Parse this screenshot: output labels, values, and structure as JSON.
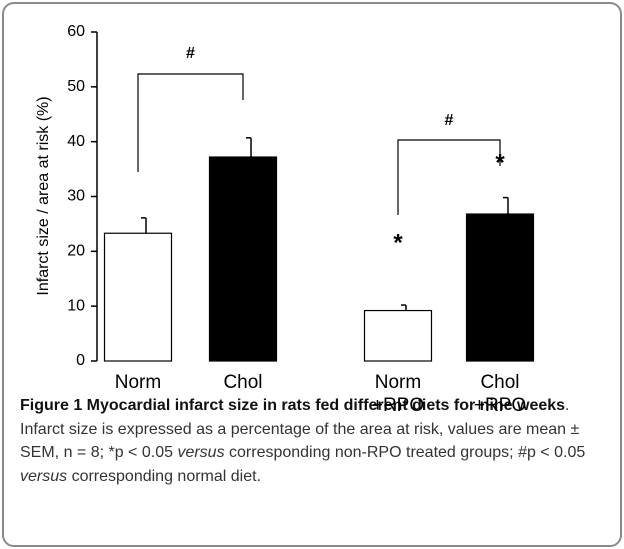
{
  "chart_data": {
    "type": "bar",
    "ylabel": "Infarct size / area at risk (%)",
    "categories": [
      "Norm",
      "Chol",
      "Norm\n+RPO",
      "Chol\n+RPO"
    ],
    "values": [
      23.3,
      37.2,
      9.2,
      26.8
    ],
    "errors": [
      2.8,
      3.5,
      1.0,
      3.0
    ],
    "colors": [
      "#ffffff",
      "#000000",
      "#ffffff",
      "#000000"
    ],
    "ylim": [
      0,
      60
    ],
    "yticks": [
      0,
      10,
      20,
      30,
      40,
      50,
      60
    ],
    "grid": false,
    "annotations": [
      "#",
      "#",
      "*",
      "*"
    ]
  },
  "caption": {
    "title": "Figure 1 Myocardial infarct size in rats fed different diets for nine weeks",
    "parts": [
      ". Infarct size is expressed as a percentage of the area at risk, values are mean ± SEM, n = 8; *p < 0.05 ",
      "versus",
      " corresponding non-RPO treated groups; #p < 0.05 ",
      "versus",
      " corresponding normal diet."
    ]
  }
}
